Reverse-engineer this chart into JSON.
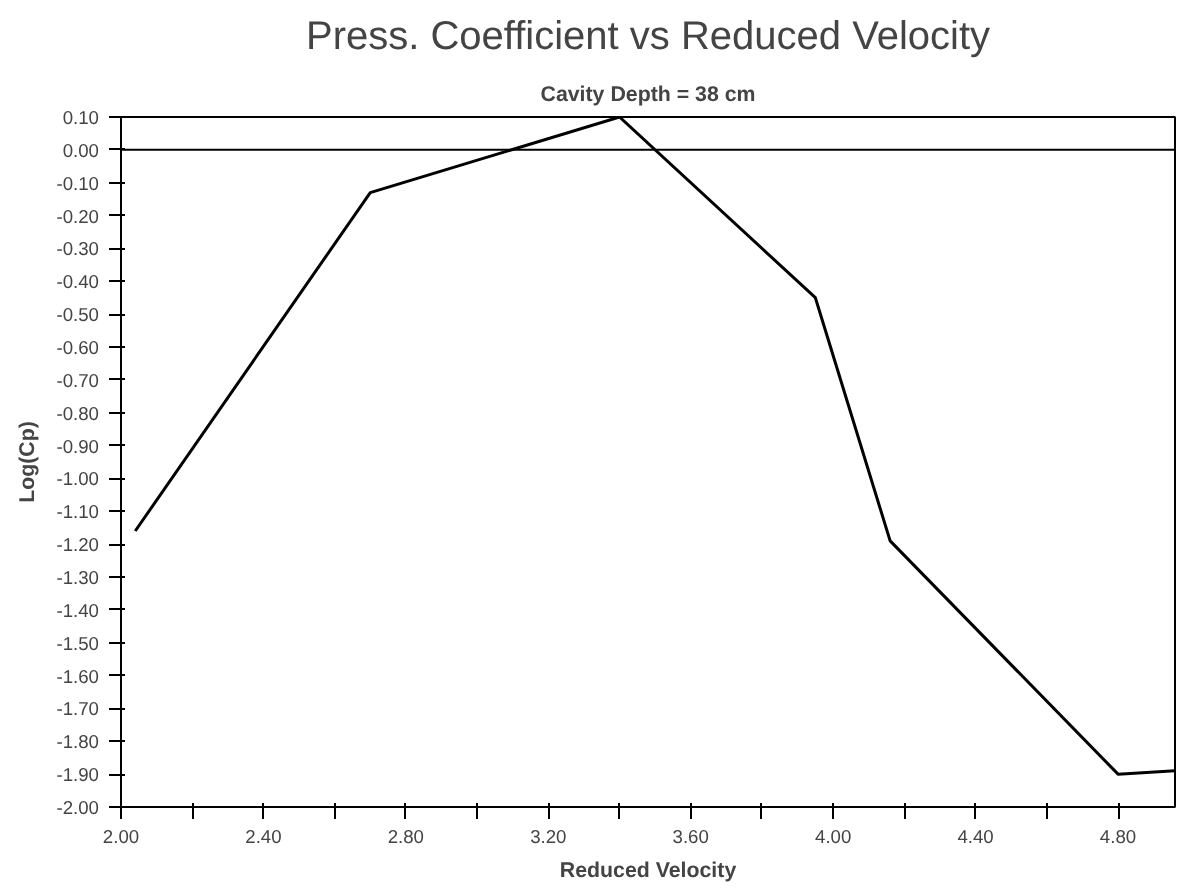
{
  "chart_data": {
    "type": "line",
    "title": "Press. Coefficient vs Reduced Velocity",
    "subtitle": "Cavity Depth = 38 cm",
    "xlabel": "Reduced Velocity",
    "ylabel": "Log(Cp)",
    "x": [
      2.04,
      2.7,
      3.4,
      3.95,
      4.16,
      4.8,
      4.96
    ],
    "series": [
      {
        "color": "#000000",
        "values": [
          -1.16,
          -0.13,
          0.1,
          -0.45,
          -1.19,
          -1.9,
          -1.89
        ]
      }
    ],
    "xlim": [
      2.0,
      4.96
    ],
    "ylim": [
      -2.0,
      0.1
    ],
    "xticks": [
      {
        "value": 2.0,
        "label": "2.00"
      },
      {
        "value": 2.2,
        "label": null
      },
      {
        "value": 2.4,
        "label": "2.40"
      },
      {
        "value": 2.6,
        "label": null
      },
      {
        "value": 2.8,
        "label": "2.80"
      },
      {
        "value": 3.0,
        "label": null
      },
      {
        "value": 3.2,
        "label": "3.20"
      },
      {
        "value": 3.4,
        "label": null
      },
      {
        "value": 3.6,
        "label": "3.60"
      },
      {
        "value": 3.8,
        "label": null
      },
      {
        "value": 4.0,
        "label": "4.00"
      },
      {
        "value": 4.2,
        "label": null
      },
      {
        "value": 4.4,
        "label": "4.40"
      },
      {
        "value": 4.6,
        "label": null
      },
      {
        "value": 4.8,
        "label": "4.80"
      }
    ],
    "yticks": [
      {
        "value": 0.1,
        "label": "0.10"
      },
      {
        "value": 0.0,
        "label": "0.00"
      },
      {
        "value": -0.1,
        "label": "-0.10"
      },
      {
        "value": -0.2,
        "label": "-0.20"
      },
      {
        "value": -0.3,
        "label": "-0.30"
      },
      {
        "value": -0.4,
        "label": "-0.40"
      },
      {
        "value": -0.5,
        "label": "-0.50"
      },
      {
        "value": -0.6,
        "label": "-0.60"
      },
      {
        "value": -0.7,
        "label": "-0.70"
      },
      {
        "value": -0.8,
        "label": "-0.80"
      },
      {
        "value": -0.9,
        "label": "-0.90"
      },
      {
        "value": -1.0,
        "label": "-1.00"
      },
      {
        "value": -1.1,
        "label": "-1.10"
      },
      {
        "value": -1.2,
        "label": "-1.20"
      },
      {
        "value": -1.3,
        "label": "-1.30"
      },
      {
        "value": -1.4,
        "label": "-1.40"
      },
      {
        "value": -1.5,
        "label": "-1.50"
      },
      {
        "value": -1.6,
        "label": "-1.60"
      },
      {
        "value": -1.7,
        "label": "-1.70"
      },
      {
        "value": -1.8,
        "label": "-1.80"
      },
      {
        "value": -1.9,
        "label": "-1.90"
      },
      {
        "value": -2.0,
        "label": "-2.00"
      }
    ],
    "ref_lines": [
      {
        "axis": "y",
        "value": 0.0,
        "label": null
      }
    ],
    "grid": false,
    "marker": "none",
    "line_style": "solid"
  }
}
